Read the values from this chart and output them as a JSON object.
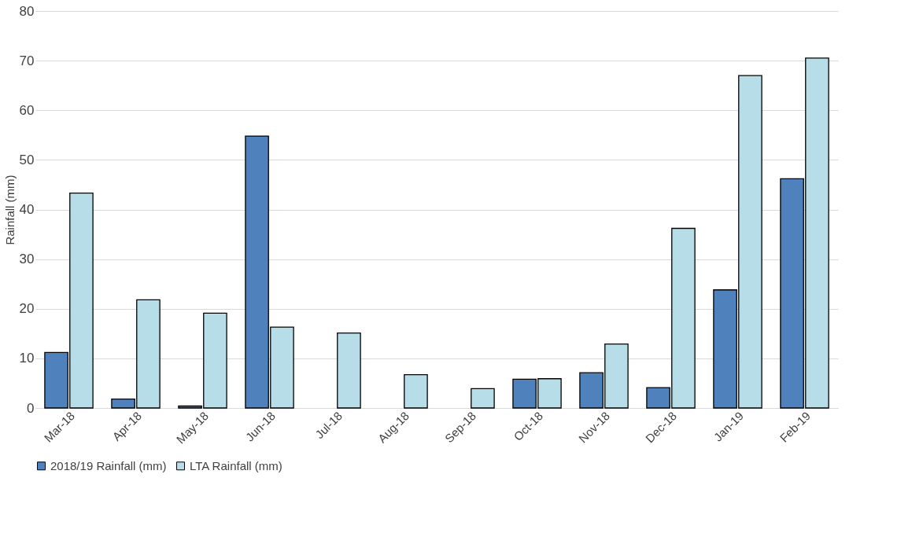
{
  "chart_data": {
    "type": "bar",
    "ylabel": "Rainfall (mm)",
    "categories": [
      "Mar-18",
      "Apr-18",
      "May-18",
      "Jun-18",
      "Jul-18",
      "Aug-18",
      "Sep-18",
      "Oct-18",
      "Nov-18",
      "Dec-18",
      "Jan-19",
      "Feb-19"
    ],
    "series": [
      {
        "name": "2018/19 Rainfall (mm)",
        "color": "#4f81bd",
        "values": [
          11.2,
          1.8,
          0.4,
          54.8,
          null,
          null,
          null,
          5.8,
          7.1,
          4.1,
          23.8,
          46.2
        ]
      },
      {
        "name": "LTA Rainfall (mm)",
        "color": "#b7dde8",
        "values": [
          43.3,
          21.8,
          19.1,
          16.3,
          15.1,
          6.7,
          3.9,
          5.9,
          12.9,
          36.2,
          67.0,
          70.5
        ]
      }
    ],
    "ylim": [
      0,
      80
    ],
    "yticks": [
      0,
      10,
      20,
      30,
      40,
      50,
      60,
      70,
      80
    ],
    "grid": "y",
    "legend": "bottom"
  }
}
